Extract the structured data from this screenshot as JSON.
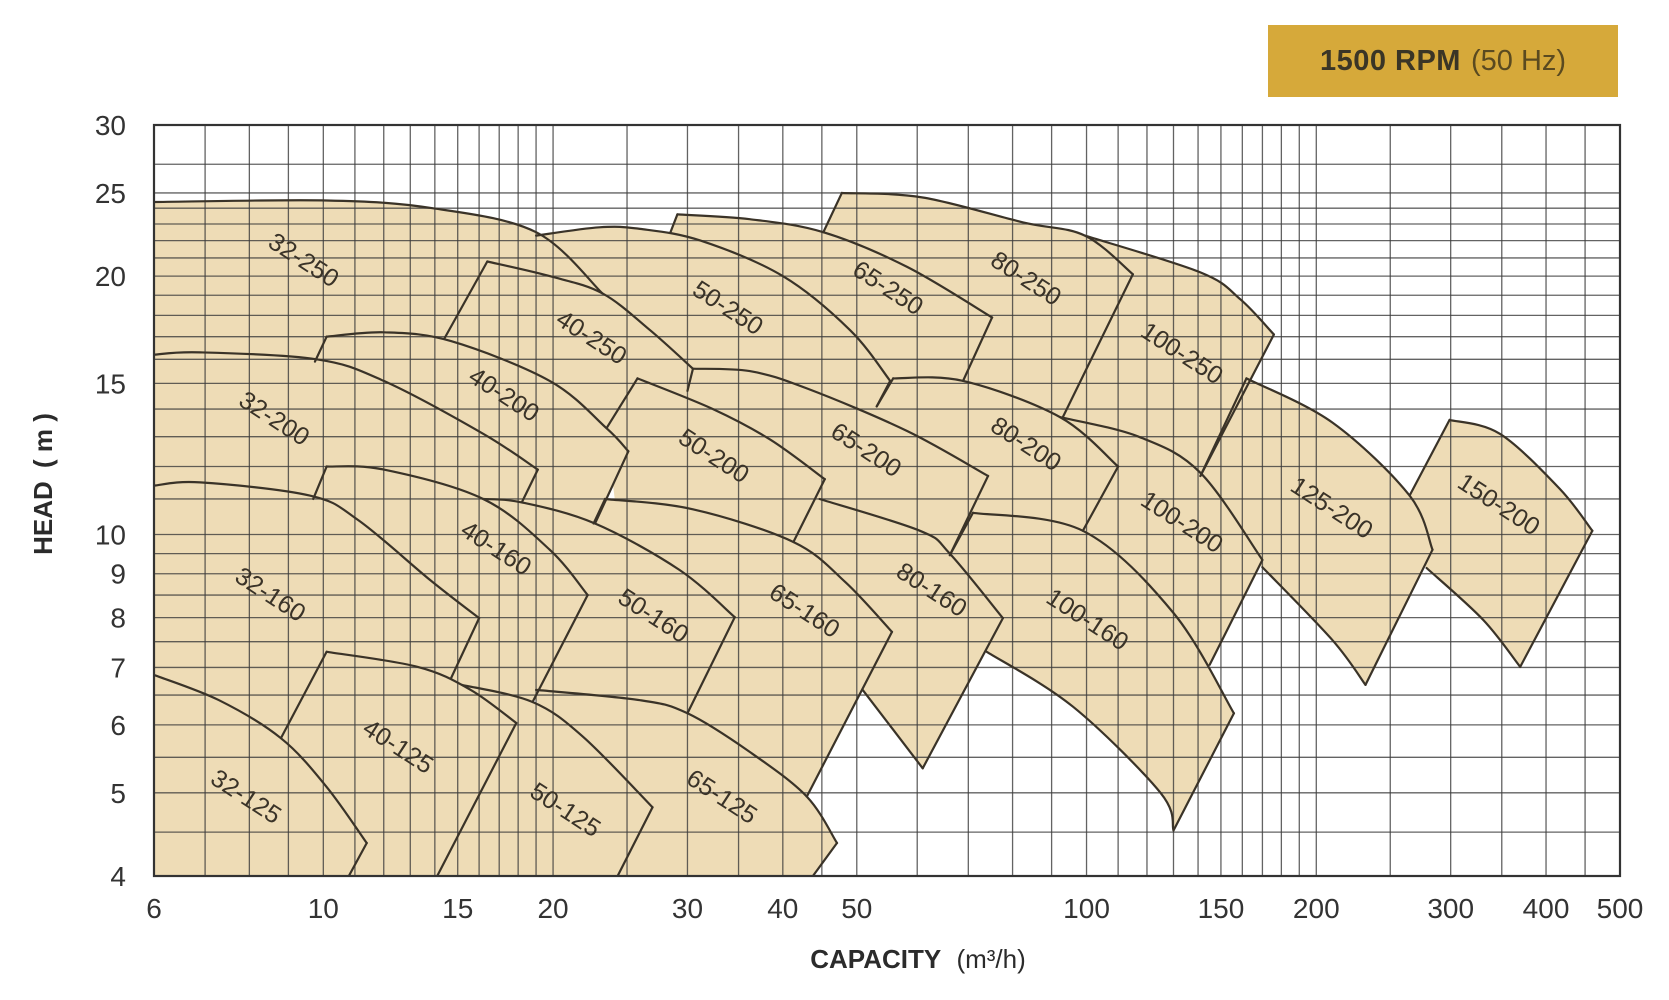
{
  "badge": {
    "speed": "1500 RPM",
    "frequency": "(50 Hz)",
    "color": "#d6a93a"
  },
  "chart_data": {
    "type": "area",
    "title": "",
    "xlabel_main": "CAPACITY",
    "xlabel_unit": "(m³/h)",
    "ylabel_main": "HEAD",
    "ylabel_unit": "( m )",
    "xscale": "log",
    "yscale": "log",
    "xlim": [
      6,
      500
    ],
    "ylim": [
      4,
      30
    ],
    "grid": true,
    "xticks": [
      "6",
      "10",
      "15",
      "20",
      "30",
      "40",
      "50",
      "100",
      "150",
      "200",
      "300",
      "400",
      "500"
    ],
    "yticks": [
      "4",
      "5",
      "6",
      "7",
      "8",
      "9",
      "10",
      "15",
      "20",
      "25",
      "30"
    ],
    "x_gridlines": [
      7,
      8,
      9,
      10,
      11,
      12,
      13,
      14,
      15,
      16,
      17,
      18,
      19,
      20,
      25,
      30,
      35,
      40,
      45,
      50,
      60,
      70,
      80,
      90,
      100,
      110,
      120,
      130,
      140,
      150,
      160,
      170,
      180,
      190,
      200,
      250,
      300,
      350,
      400,
      450
    ],
    "y_gridlines": [
      4.5,
      5,
      5.5,
      6,
      6.5,
      7,
      7.5,
      8,
      8.5,
      9,
      9.5,
      10,
      11,
      12,
      13,
      14,
      15,
      16,
      17,
      18,
      19,
      20,
      21,
      22,
      23,
      24,
      25,
      27
    ],
    "fill_color": "#eedcb6",
    "line_color": "#3a3328",
    "series": [
      {
        "name": "32-250",
        "top": [
          [
            6,
            24.4
          ],
          [
            10.1,
            24.5
          ],
          [
            13.9,
            24.0
          ],
          [
            19.0,
            22.5
          ],
          [
            23.2,
            19.1
          ]
        ],
        "right_bottom": [
          22.7,
          16.8
        ],
        "bottom": [
          [
            14.7,
            14.3
          ],
          [
            6,
            13.6
          ]
        ],
        "edges": [
          "top"
        ],
        "label_at": [
          9.4,
          20.8
        ]
      },
      {
        "name": "40-250",
        "top": [
          [
            16.4,
            20.8
          ],
          [
            19.8,
            20.0
          ],
          [
            23.2,
            19.1
          ],
          [
            26.8,
            17.3
          ],
          [
            30.5,
            15.6
          ]
        ],
        "right_bottom": [
          30.0,
          14.7
        ],
        "bottom": [
          [
            24.5,
            12.2
          ],
          [
            17.0,
            13.2
          ]
        ],
        "left_bottom": [
          14.4,
          16.9
        ],
        "edges": [
          "left",
          "top",
          "right"
        ],
        "label_at": [
          22.4,
          16.9
        ]
      },
      {
        "name": "50-250",
        "top": [
          [
            19.0,
            22.3
          ],
          [
            23.0,
            22.8
          ],
          [
            26.0,
            22.7
          ],
          [
            31.2,
            22.0
          ],
          [
            40.0,
            20.0
          ],
          [
            49.0,
            17.3
          ],
          [
            55.3,
            15.1
          ]
        ],
        "right_bottom": [
          53.1,
          14.1
        ],
        "bottom": [
          [
            37.3,
            12.9
          ],
          [
            23.0,
            15.1
          ],
          [
            19.0,
            18.8
          ]
        ],
        "edges": [
          "top",
          "right"
        ],
        "label_at": [
          33.8,
          18.3
        ]
      },
      {
        "name": "65-250",
        "top": [
          [
            29.1,
            23.6
          ],
          [
            36.2,
            23.3
          ],
          [
            45.2,
            22.5
          ],
          [
            58.2,
            20.5
          ],
          [
            75.2,
            17.9
          ]
        ],
        "right_bottom": [
          68.9,
          15.1
        ],
        "bottom": [
          [
            52.0,
            12.9
          ],
          [
            36.2,
            17.3
          ]
        ],
        "left_bottom": [
          28.5,
          22.5
        ],
        "edges": [
          "left",
          "top",
          "right"
        ],
        "label_at": [
          54.8,
          19.3
        ]
      },
      {
        "name": "80-250",
        "top": [
          [
            47.8,
            25.0
          ],
          [
            61.0,
            24.7
          ],
          [
            82.6,
            23.1
          ],
          [
            99.5,
            22.3
          ],
          [
            115,
            20.1
          ]
        ],
        "right_bottom": [
          93.1,
          13.7
        ],
        "bottom": [
          [
            72.5,
            12.9
          ],
          [
            57.0,
            17.3
          ]
        ],
        "left_bottom": [
          45.2,
          22.5
        ],
        "edges": [
          "left",
          "top",
          "right"
        ],
        "label_at": [
          83.1,
          19.8
        ]
      },
      {
        "name": "100-250",
        "top": [
          [
            99.5,
            22.3
          ],
          [
            141,
            20.2
          ],
          [
            159,
            18.8
          ],
          [
            176,
            17.1
          ]
        ],
        "right_bottom": [
          141,
          11.7
        ],
        "bottom": [
          [
            111,
            11.9
          ],
          [
            93.1,
            13.7
          ]
        ],
        "edges": [
          "top",
          "right"
        ],
        "label_at": [
          133,
          16.2
        ]
      },
      {
        "name": "32-200",
        "top": [
          [
            6,
            16.2
          ],
          [
            6.9,
            16.3
          ],
          [
            9.8,
            16.0
          ],
          [
            12.0,
            15.1
          ],
          [
            16.2,
            13.1
          ],
          [
            19.1,
            11.9
          ]
        ],
        "right_bottom": [
          18.2,
          10.9
        ],
        "bottom": [
          [
            12.6,
            10.7
          ],
          [
            6,
            11.0
          ]
        ],
        "edges": [
          "top",
          "right"
        ],
        "label_at": [
          8.6,
          13.6
        ]
      },
      {
        "name": "40-200",
        "top": [
          [
            10.1,
            17.0
          ],
          [
            12.0,
            17.2
          ],
          [
            14.7,
            16.8
          ],
          [
            19.8,
            15.1
          ],
          [
            23.5,
            13.3
          ],
          [
            25.1,
            12.5
          ]
        ],
        "right_bottom": [
          22.7,
          10.3
        ],
        "bottom": [
          [
            16.0,
            10.4
          ]
        ],
        "left_bottom": [
          9.75,
          15.9
        ],
        "edges": [
          "left",
          "top",
          "right"
        ],
        "label_at": [
          17.2,
          14.5
        ]
      },
      {
        "name": "50-200",
        "top": [
          [
            25.8,
            15.2
          ],
          [
            32.4,
            14.0
          ],
          [
            38.5,
            12.9
          ],
          [
            45.4,
            11.6
          ]
        ],
        "right_bottom": [
          41.3,
          9.8
        ],
        "bottom": [
          [
            31.2,
            9.34
          ],
          [
            24.5,
            9.85
          ]
        ],
        "left_bottom": [
          23.5,
          13.3
        ],
        "edges": [
          "left",
          "top",
          "right"
        ],
        "label_at": [
          32.4,
          12.3
        ]
      },
      {
        "name": "65-200",
        "top": [
          [
            30.5,
            15.6
          ],
          [
            36.2,
            15.5
          ],
          [
            43.0,
            14.8
          ],
          [
            58.2,
            13.2
          ],
          [
            74.3,
            11.7
          ]
        ],
        "right_bottom": [
          66.2,
          9.46
        ],
        "bottom": [
          [
            49.0,
            8.16
          ],
          [
            33.1,
            9.34
          ]
        ],
        "left_bottom": [
          30.0,
          14.7
        ],
        "edges": [
          "top",
          "right"
        ],
        "label_at": [
          51.3,
          12.5
        ]
      },
      {
        "name": "80-200",
        "top": [
          [
            55.8,
            15.2
          ],
          [
            68.9,
            15.1
          ],
          [
            92.3,
            13.7
          ],
          [
            110,
            12.0
          ]
        ],
        "right_bottom": [
          98.9,
          10.1
        ],
        "bottom": [
          [
            77.0,
            9.34
          ],
          [
            57.0,
            10.4
          ]
        ],
        "left_bottom": [
          53.1,
          14.1
        ],
        "edges": [
          "left",
          "top",
          "right"
        ],
        "label_at": [
          83.1,
          12.7
        ]
      },
      {
        "name": "100-200",
        "top": [
          [
            92.3,
            13.7
          ],
          [
            117,
            13.0
          ],
          [
            141,
            11.8
          ],
          [
            170,
            9.34
          ]
        ],
        "right_bottom": [
          145,
          7.05
        ],
        "bottom": [
          [
            121,
            7.53
          ],
          [
            98.0,
            9.34
          ]
        ],
        "edges": [
          "top",
          "right"
        ],
        "label_at": [
          133,
          10.3
        ]
      },
      {
        "name": "125-200",
        "top": [
          [
            162,
            15.2
          ],
          [
            210,
            13.5
          ],
          [
            265,
            11.1
          ],
          [
            284,
            9.6
          ]
        ],
        "right_bottom": [
          232,
          6.68
        ],
        "bottom": [
          [
            210,
            7.53
          ],
          [
            170,
            9.16
          ]
        ],
        "left_bottom": [
          141,
          11.7
        ],
        "edges": [
          "left",
          "top",
          "right",
          "bottom"
        ],
        "label_at": [
          209,
          10.7
        ]
      },
      {
        "name": "150-200",
        "top": [
          [
            299,
            13.6
          ],
          [
            348,
            13.1
          ],
          [
            417,
            11.3
          ],
          [
            460,
            10.1
          ]
        ],
        "right_bottom": [
          370,
          7.01
        ],
        "bottom": [
          [
            331,
            7.95
          ],
          [
            279,
            9.14
          ]
        ],
        "left_bottom": [
          265,
          11.1
        ],
        "edges": [
          "left",
          "top",
          "right",
          "bottom"
        ],
        "label_at": [
          346,
          10.8
        ]
      },
      {
        "name": "32-160",
        "top": [
          [
            6,
            11.4
          ],
          [
            6.9,
            11.5
          ],
          [
            9.6,
            11.1
          ],
          [
            11.1,
            10.4
          ],
          [
            13.8,
            8.85
          ],
          [
            16.0,
            7.99
          ]
        ],
        "right_bottom": [
          14.7,
          6.8
        ],
        "bottom": [
          [
            11.9,
            6.08
          ],
          [
            8.0,
            5.76
          ],
          [
            6,
            6.41
          ]
        ],
        "edges": [
          "top",
          "right"
        ],
        "label_at": [
          8.5,
          8.48
        ]
      },
      {
        "name": "40-160",
        "top": [
          [
            10.1,
            12.0
          ],
          [
            12.0,
            11.9
          ],
          [
            16.2,
            11.0
          ],
          [
            19.8,
            9.6
          ],
          [
            22.2,
            8.5
          ]
        ],
        "right_bottom": [
          18.8,
          6.38
        ],
        "bottom": [
          [
            13.8,
            6.77
          ]
        ],
        "left_bottom": [
          9.7,
          11.0
        ],
        "edges": [
          "left",
          "top",
          "right"
        ],
        "label_at": [
          16.8,
          9.6
        ]
      },
      {
        "name": "50-160",
        "top": [
          [
            16.2,
            11.0
          ],
          [
            18.2,
            10.9
          ],
          [
            22.7,
            10.3
          ],
          [
            29.3,
            9.09
          ],
          [
            34.6,
            8.01
          ]
        ],
        "right_bottom": [
          30.0,
          6.19
        ],
        "bottom": [
          [
            20.4,
            6.08
          ],
          [
            15.6,
            8.39
          ]
        ],
        "edges": [
          "top",
          "right"
        ],
        "label_at": [
          27.0,
          8.01
        ]
      },
      {
        "name": "65-160",
        "top": [
          [
            23.4,
            11.0
          ],
          [
            30.5,
            10.7
          ],
          [
            41.3,
            9.8
          ],
          [
            48.3,
            8.8
          ],
          [
            55.6,
            7.7
          ]
        ],
        "right_bottom": [
          43.0,
          4.95
        ],
        "bottom": [
          [
            31.2,
            5.31
          ],
          [
            23.0,
            6.08
          ]
        ],
        "left_bottom": [
          22.6,
          10.3
        ],
        "edges": [
          "left",
          "top",
          "right"
        ],
        "label_at": [
          42.6,
          8.12
        ]
      },
      {
        "name": "80-160",
        "top": [
          [
            44.7,
            11.0
          ],
          [
            60.5,
            10.1
          ],
          [
            66.2,
            9.5
          ],
          [
            77.7,
            7.99
          ]
        ],
        "right_bottom": [
          61.0,
          5.34
        ],
        "bottom": [
          [
            50.9,
            6.59
          ]
        ],
        "left_bottom": [
          47.5,
          8.39
        ],
        "edges": [
          "top",
          "right",
          "bottom"
        ],
        "label_at": [
          62.5,
          8.59
        ]
      },
      {
        "name": "100-160",
        "top": [
          [
            71.0,
            10.6
          ],
          [
            98.9,
            10.1
          ],
          [
            130,
            8.1
          ],
          [
            156,
            6.19
          ]
        ],
        "right_bottom": [
          130,
          4.52
        ],
        "bottom": [
          [
            125,
            5.0
          ],
          [
            96.0,
            6.3
          ],
          [
            74.0,
            7.3
          ]
        ],
        "left_bottom": [
          66.2,
          9.46
        ],
        "edges": [
          "left",
          "top",
          "right",
          "bottom"
        ],
        "label_at": [
          100,
          7.93
        ]
      },
      {
        "name": "32-125",
        "top": [
          [
            6,
            6.86
          ],
          [
            7.3,
            6.41
          ],
          [
            8.8,
            5.79
          ],
          [
            10.1,
            5.08
          ],
          [
            11.4,
            4.37
          ]
        ],
        "right_bottom": [
          10.8,
          4.0
        ],
        "bottom": [
          [
            6,
            4.0
          ]
        ],
        "edges": [
          "top",
          "right"
        ],
        "label_at": [
          7.9,
          4.93
        ]
      },
      {
        "name": "40-125",
        "top": [
          [
            10.1,
            7.3
          ],
          [
            13.3,
            7.01
          ],
          [
            15.6,
            6.59
          ],
          [
            17.9,
            6.03
          ]
        ],
        "right_bottom": [
          14.1,
          4.0
        ],
        "bottom": [
          [
            9.9,
            4.0
          ]
        ],
        "left_bottom": [
          8.8,
          5.79
        ],
        "edges": [
          "left",
          "top",
          "right"
        ],
        "label_at": [
          12.5,
          5.64
        ]
      },
      {
        "name": "50-125",
        "top": [
          [
            15.2,
            6.68
          ],
          [
            18.8,
            6.38
          ],
          [
            21.9,
            5.81
          ],
          [
            27.0,
            4.81
          ]
        ],
        "right_bottom": [
          24.3,
          4.0
        ],
        "bottom": [
          [
            14.2,
            4.0
          ]
        ],
        "edges": [
          "top",
          "right"
        ],
        "label_at": [
          20.7,
          4.76
        ]
      },
      {
        "name": "65-125",
        "top": [
          [
            19.0,
            6.59
          ],
          [
            26.0,
            6.41
          ],
          [
            30.0,
            6.19
          ],
          [
            36.2,
            5.58
          ],
          [
            43.0,
            4.95
          ],
          [
            47.1,
            4.37
          ]
        ],
        "right_bottom": [
          43.8,
          4.0
        ],
        "bottom": [
          [
            20.4,
            4.0
          ]
        ],
        "edges": [
          "top",
          "right"
        ],
        "label_at": [
          33.2,
          4.93
        ]
      }
    ]
  }
}
